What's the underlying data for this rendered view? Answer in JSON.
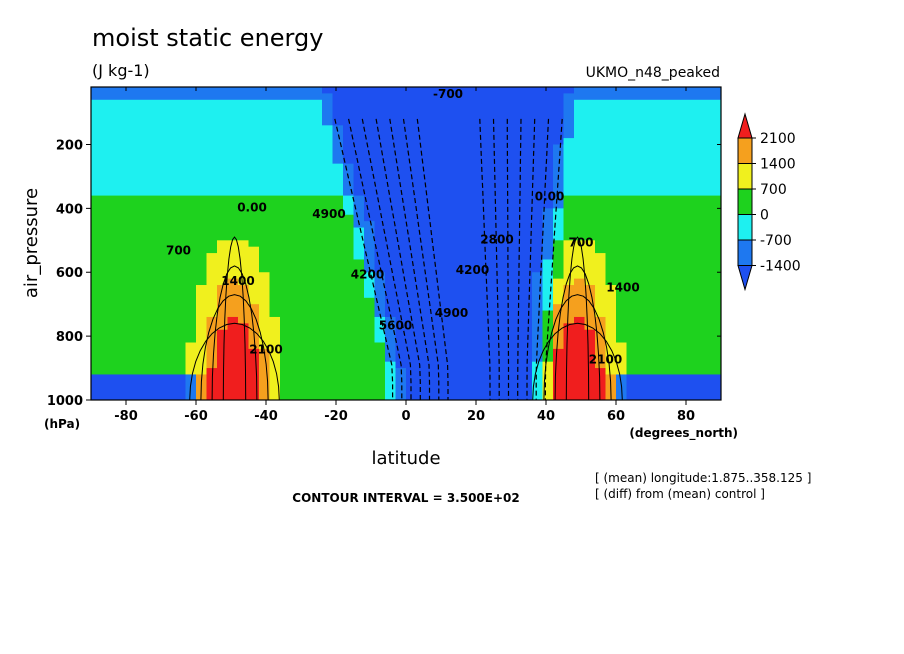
{
  "chart_data": {
    "type": "heatmap",
    "title": "moist static energy",
    "units": "(J kg-1)",
    "dataset": "UKMO_n48_peaked",
    "xlabel": "latitude",
    "x_units": "(degrees_north)",
    "ylabel": "air_pressure",
    "y_units": "(hPa)",
    "xlim": [
      -90,
      90
    ],
    "ylim": [
      1000,
      20
    ],
    "x_ticks": [
      "-80",
      "-60",
      "-40",
      "-20",
      "0",
      "20",
      "40",
      "60",
      "80"
    ],
    "x_tick_values": [
      -80,
      -60,
      -40,
      -20,
      0,
      20,
      40,
      60,
      80
    ],
    "y_ticks": [
      "200",
      "400",
      "600",
      "800",
      "1000"
    ],
    "y_tick_values": [
      200,
      400,
      600,
      800,
      1000
    ],
    "colorbar": {
      "levels": [
        "2100",
        "1400",
        "700",
        "0",
        "-700",
        "-1400"
      ],
      "level_values": [
        2100,
        1400,
        700,
        0,
        -700,
        -1400
      ],
      "colors": [
        "#f01e1e",
        "#f5a01e",
        "#f0f01e",
        "#1ed21e",
        "#1ef0f0",
        "#1e78f0",
        "#1e50f0"
      ]
    },
    "contour_labels": [
      {
        "text": "-700",
        "lat": 12,
        "p": 55
      },
      {
        "text": "0.00",
        "lat": -44,
        "p": 410
      },
      {
        "text": "700",
        "lat": -65,
        "p": 545
      },
      {
        "text": "1400",
        "lat": -48,
        "p": 640
      },
      {
        "text": "2100",
        "lat": -40,
        "p": 855
      },
      {
        "text": "4900",
        "lat": -22,
        "p": 430
      },
      {
        "text": "4200",
        "lat": -11,
        "p": 620
      },
      {
        "text": "5600",
        "lat": -3,
        "p": 780
      },
      {
        "text": "4900",
        "lat": 13,
        "p": 740
      },
      {
        "text": "4200",
        "lat": 19,
        "p": 605
      },
      {
        "text": "2800",
        "lat": 26,
        "p": 510
      },
      {
        "text": "0.00",
        "lat": 41,
        "p": 375
      },
      {
        "text": "700",
        "lat": 50,
        "p": 520
      },
      {
        "text": "1400",
        "lat": 62,
        "p": 660
      },
      {
        "text": "2100",
        "lat": 57,
        "p": 885
      }
    ],
    "contour_interval_label": "CONTOUR INTERVAL = 3.500E+02",
    "notes": [
      "[ (mean) longitude:1.875..358.125 ]",
      "[ (diff) from (mean) control ]"
    ],
    "grid": false
  }
}
